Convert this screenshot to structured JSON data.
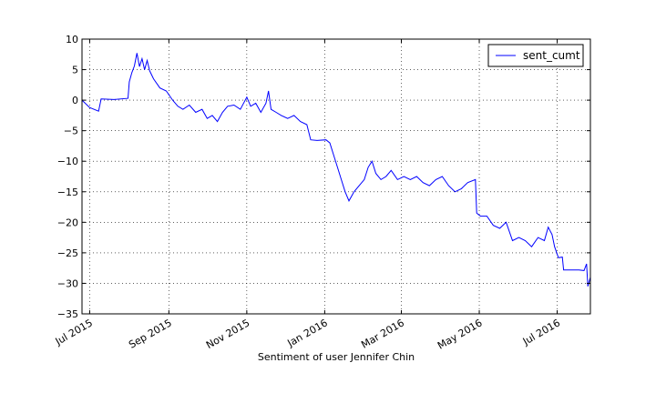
{
  "chart_data": {
    "type": "line",
    "title": "",
    "xlabel": "Sentiment of user Jennifer Chin",
    "ylabel": "",
    "xlim": [
      "2015-06-25",
      "2016-07-27"
    ],
    "ylim": [
      -35,
      10
    ],
    "grid": true,
    "legend_position": "top-right",
    "x_ticks": [
      "2015-07-01",
      "2015-09-01",
      "2015-11-01",
      "2016-01-01",
      "2016-03-01",
      "2016-05-01",
      "2016-07-01"
    ],
    "x_tick_labels": [
      "Jul 2015",
      "Sep 2015",
      "Nov 2015",
      "Jan 2016",
      "Mar 2016",
      "May 2016",
      "Jul 2016"
    ],
    "y_ticks": [
      -35,
      -30,
      -25,
      -20,
      -15,
      -10,
      -5,
      0,
      5,
      10
    ],
    "y_tick_labels": [
      "−35",
      "−30",
      "−25",
      "−20",
      "−15",
      "−10",
      "−5",
      "0",
      "5",
      "10"
    ],
    "series": [
      {
        "name": "sent_cumt",
        "color": "#0000ff",
        "points": [
          [
            "2015-06-25",
            0.0
          ],
          [
            "2015-07-01",
            -1.2
          ],
          [
            "2015-07-08",
            -1.8
          ],
          [
            "2015-07-10",
            0.2
          ],
          [
            "2015-07-20",
            0.1
          ],
          [
            "2015-07-31",
            0.3
          ],
          [
            "2015-08-01",
            3.0
          ],
          [
            "2015-08-03",
            4.5
          ],
          [
            "2015-08-05",
            5.6
          ],
          [
            "2015-08-07",
            7.7
          ],
          [
            "2015-08-09",
            5.5
          ],
          [
            "2015-08-11",
            6.8
          ],
          [
            "2015-08-13",
            5.0
          ],
          [
            "2015-08-15",
            6.5
          ],
          [
            "2015-08-17",
            4.8
          ],
          [
            "2015-08-20",
            3.5
          ],
          [
            "2015-08-25",
            2.0
          ],
          [
            "2015-08-30",
            1.5
          ],
          [
            "2015-09-04",
            0.0
          ],
          [
            "2015-09-08",
            -1.0
          ],
          [
            "2015-09-12",
            -1.5
          ],
          [
            "2015-09-17",
            -0.8
          ],
          [
            "2015-09-22",
            -2.0
          ],
          [
            "2015-09-27",
            -1.5
          ],
          [
            "2015-10-01",
            -3.0
          ],
          [
            "2015-10-05",
            -2.5
          ],
          [
            "2015-10-09",
            -3.5
          ],
          [
            "2015-10-13",
            -2.0
          ],
          [
            "2015-10-17",
            -1.0
          ],
          [
            "2015-10-22",
            -0.8
          ],
          [
            "2015-10-27",
            -1.5
          ],
          [
            "2015-11-01",
            0.5
          ],
          [
            "2015-11-04",
            -1.0
          ],
          [
            "2015-11-08",
            -0.5
          ],
          [
            "2015-11-12",
            -2.0
          ],
          [
            "2015-11-16",
            -0.5
          ],
          [
            "2015-11-18",
            1.5
          ],
          [
            "2015-11-20",
            -1.5
          ],
          [
            "2015-11-24",
            -2.0
          ],
          [
            "2015-11-28",
            -2.5
          ],
          [
            "2015-12-03",
            -3.0
          ],
          [
            "2015-12-08",
            -2.5
          ],
          [
            "2015-12-13",
            -3.5
          ],
          [
            "2015-12-18",
            -4.0
          ],
          [
            "2015-12-21",
            -6.5
          ],
          [
            "2015-12-26",
            -6.6
          ],
          [
            "2016-01-02",
            -6.5
          ],
          [
            "2016-01-05",
            -7.0
          ],
          [
            "2016-01-08",
            -9.0
          ],
          [
            "2016-01-11",
            -11.0
          ],
          [
            "2016-01-14",
            -13.0
          ],
          [
            "2016-01-17",
            -15.0
          ],
          [
            "2016-01-20",
            -16.5
          ],
          [
            "2016-01-24",
            -15.0
          ],
          [
            "2016-01-28",
            -14.0
          ],
          [
            "2016-02-01",
            -13.0
          ],
          [
            "2016-02-04",
            -11.0
          ],
          [
            "2016-02-07",
            -10.0
          ],
          [
            "2016-02-10",
            -12.0
          ],
          [
            "2016-02-14",
            -13.0
          ],
          [
            "2016-02-18",
            -12.5
          ],
          [
            "2016-02-22",
            -11.5
          ],
          [
            "2016-02-27",
            -13.0
          ],
          [
            "2016-03-03",
            -12.5
          ],
          [
            "2016-03-08",
            -13.0
          ],
          [
            "2016-03-13",
            -12.5
          ],
          [
            "2016-03-18",
            -13.5
          ],
          [
            "2016-03-23",
            -14.0
          ],
          [
            "2016-03-28",
            -13.0
          ],
          [
            "2016-04-02",
            -12.5
          ],
          [
            "2016-04-07",
            -14.0
          ],
          [
            "2016-04-12",
            -15.0
          ],
          [
            "2016-04-17",
            -14.5
          ],
          [
            "2016-04-22",
            -13.5
          ],
          [
            "2016-04-28",
            -13.0
          ],
          [
            "2016-04-29",
            -18.5
          ],
          [
            "2016-05-02",
            -19.0
          ],
          [
            "2016-05-07",
            -19.0
          ],
          [
            "2016-05-12",
            -20.5
          ],
          [
            "2016-05-17",
            -21.0
          ],
          [
            "2016-05-22",
            -20.0
          ],
          [
            "2016-05-27",
            -23.0
          ],
          [
            "2016-06-01",
            -22.5
          ],
          [
            "2016-06-06",
            -23.0
          ],
          [
            "2016-06-11",
            -24.0
          ],
          [
            "2016-06-16",
            -22.5
          ],
          [
            "2016-06-21",
            -23.0
          ],
          [
            "2016-06-24",
            -20.8
          ],
          [
            "2016-06-27",
            -22.0
          ],
          [
            "2016-06-29",
            -24.0
          ],
          [
            "2016-07-02",
            -25.8
          ],
          [
            "2016-07-05",
            -25.7
          ],
          [
            "2016-07-06",
            -27.8
          ],
          [
            "2016-07-12",
            -27.8
          ],
          [
            "2016-07-18",
            -27.8
          ],
          [
            "2016-07-22",
            -27.9
          ],
          [
            "2016-07-24",
            -26.8
          ],
          [
            "2016-07-25",
            -30.5
          ],
          [
            "2016-07-27",
            -29.0
          ]
        ]
      }
    ]
  }
}
